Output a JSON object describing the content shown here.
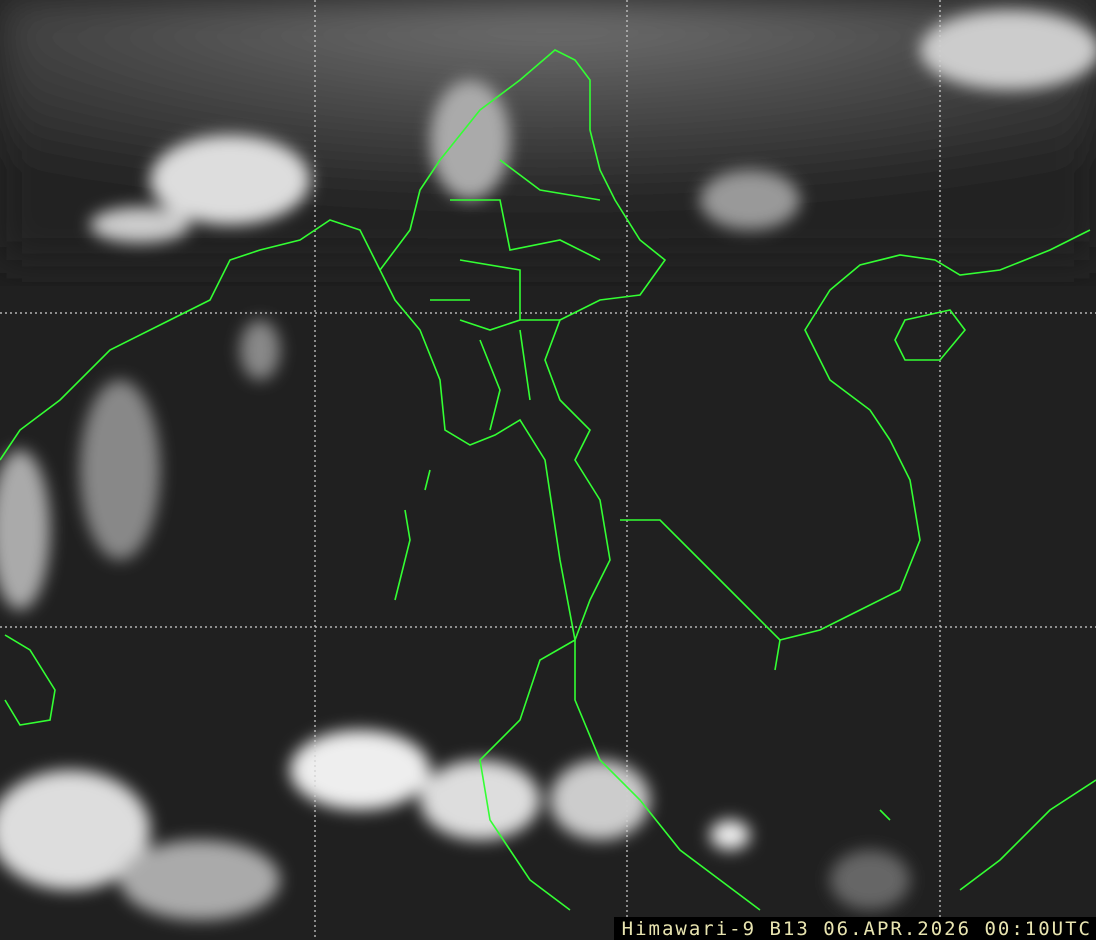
{
  "image": {
    "type": "satellite-infrared-imagery",
    "caption": "Himawari-9 B13 06.APR.2026 00:10UTC",
    "colors": {
      "border_lines": "#33ff33",
      "grid_lines": "#d0d0d0",
      "caption_text": "#e8e4b0",
      "caption_background": "#000000"
    }
  }
}
